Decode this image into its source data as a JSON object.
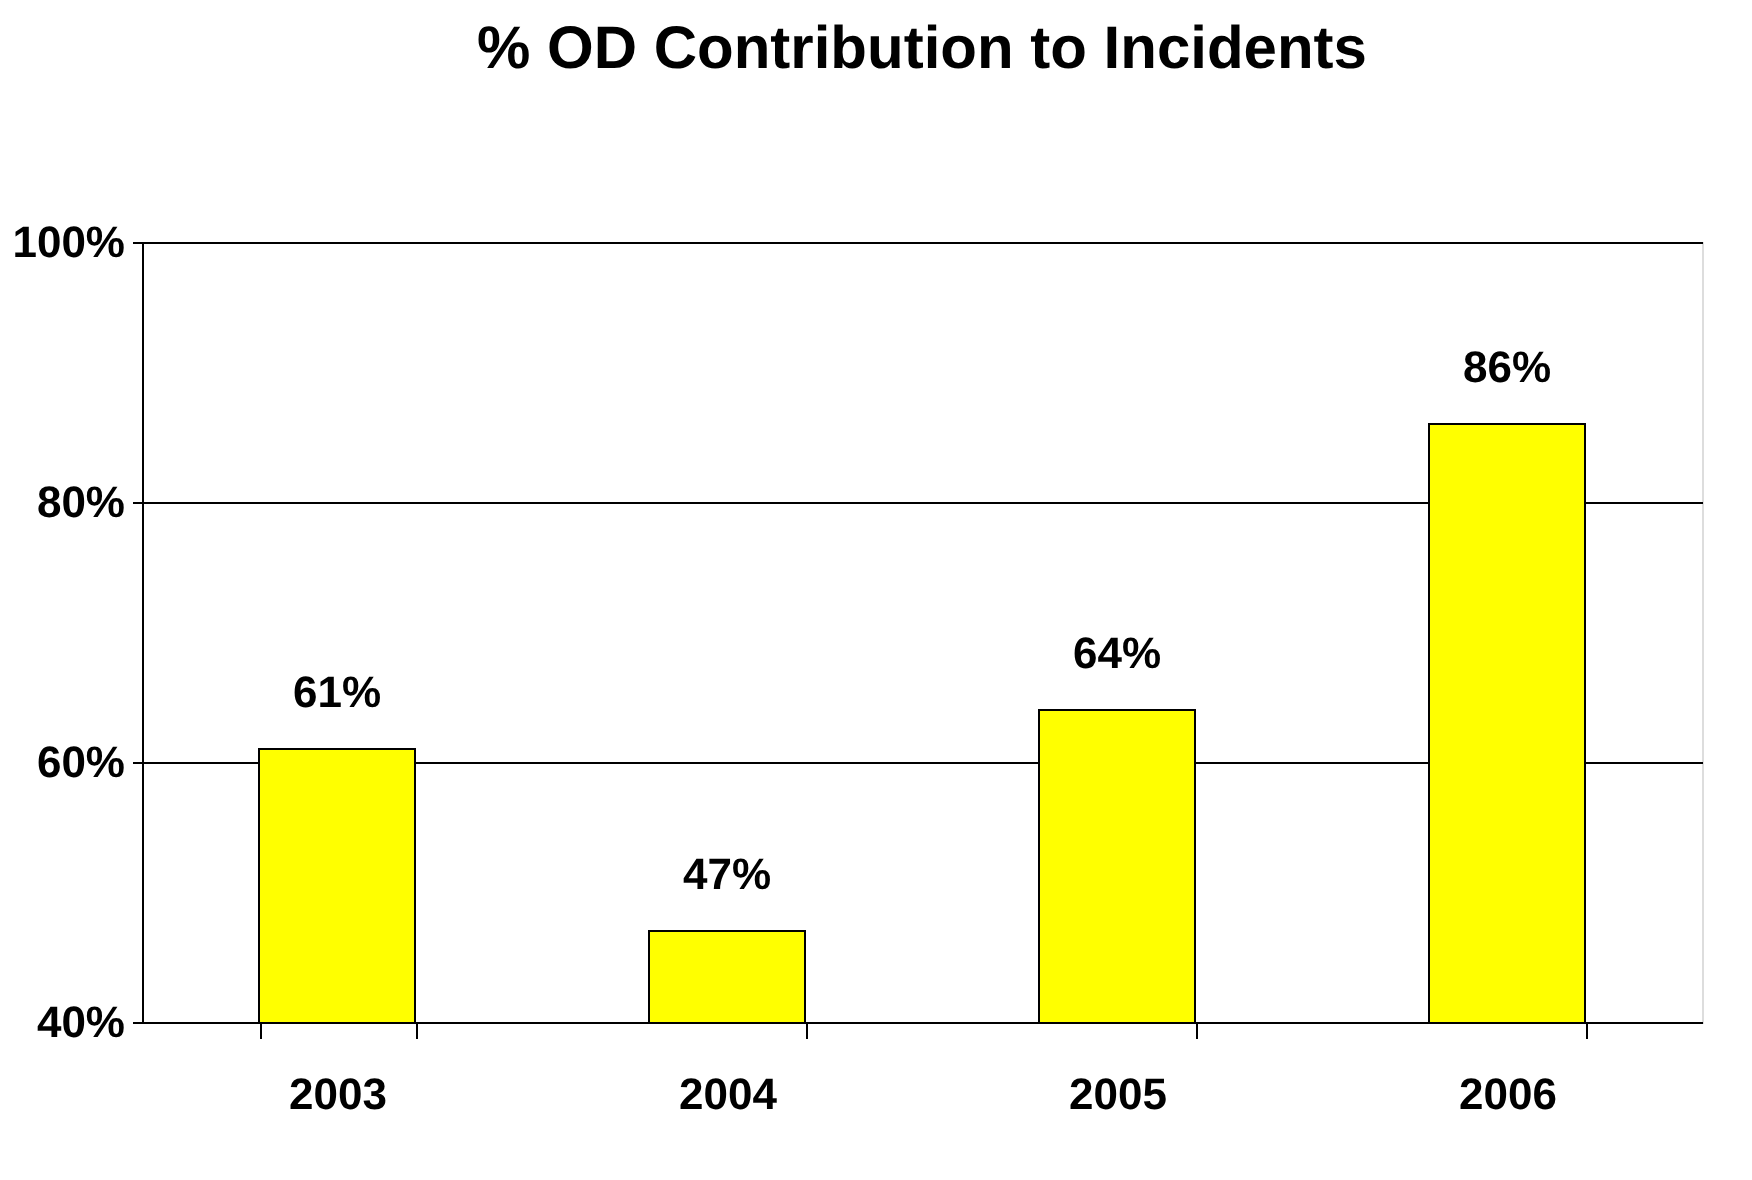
{
  "chart_data": {
    "type": "bar",
    "title": "% OD Contribution to Incidents",
    "categories": [
      "2003",
      "2004",
      "2005",
      "2006"
    ],
    "values": [
      61,
      47,
      64,
      86
    ],
    "value_labels": [
      "61%",
      "47%",
      "64%",
      "86%"
    ],
    "color": "#ffff00",
    "ylim": [
      40,
      100
    ],
    "yticks": [
      {
        "value": 40,
        "label": "40%"
      },
      {
        "value": 60,
        "label": "60%"
      },
      {
        "value": 80,
        "label": "80%"
      },
      {
        "value": 100,
        "label": "100%"
      }
    ],
    "grid": "y"
  }
}
